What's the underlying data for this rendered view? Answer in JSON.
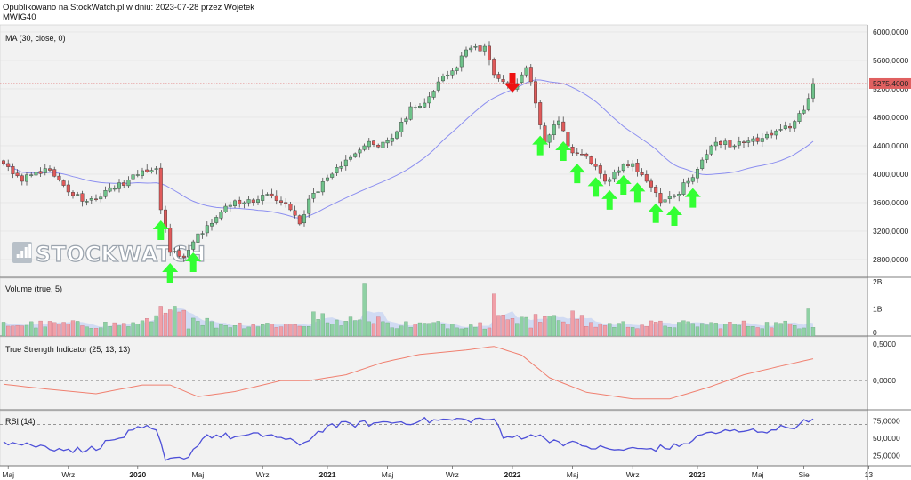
{
  "header": {
    "line1": "Opublikowano na StockWatch.pl w dniu: 2023-07-28 przez Wojetek",
    "line2": "MWIG40"
  },
  "watermark": "STOCKWATCH",
  "colors": {
    "up": "#6fc28a",
    "down": "#e05a5a",
    "ma": "#8c8ff0",
    "tsi": "#f08070",
    "rsi": "#4d4fd8",
    "vol_up": "#8fd1a4",
    "vol_down": "#f0a0a8",
    "arrow_buy": "#33ff33",
    "arrow_sell": "#ee1111",
    "last_price": "#e06060"
  },
  "x_axis": {
    "labels": [
      "Maj",
      "Wrz",
      "2020",
      "Maj",
      "Wrz",
      "2021",
      "Maj",
      "Wrz",
      "2022",
      "Maj",
      "Wrz",
      "2023",
      "Maj",
      "Sie",
      "13"
    ],
    "bold_labels": [
      "2020",
      "2021",
      "2022",
      "2023"
    ]
  },
  "panels": {
    "price": {
      "label": "MA (30, close, 0)",
      "ticks": [
        "6000,0000",
        "5600,0000",
        "5200,0000",
        "4800,0000",
        "4400,0000",
        "4000,0000",
        "3600,0000",
        "3200,0000",
        "2800,0000"
      ],
      "last_price_label": "5275,4000",
      "last_price": 5275.4
    },
    "volume": {
      "label": "Volume (true, 5)",
      "ticks": [
        "2B",
        "1B",
        "0"
      ]
    },
    "tsi": {
      "label": "True Strength Indicator (25, 13, 13)",
      "ticks": [
        "0,5000",
        "0,0000"
      ]
    },
    "rsi": {
      "label": "RSI (14)",
      "ticks": [
        "75,0000",
        "50,0000",
        "25,0000"
      ]
    }
  },
  "chart_data": {
    "type": "candlestick",
    "instrument": "MWIG40",
    "period": "weekly",
    "price_range": [
      2550,
      6100
    ],
    "close_anchors": [
      [
        0,
        4150
      ],
      [
        4,
        3900
      ],
      [
        9,
        4080
      ],
      [
        14,
        3750
      ],
      [
        18,
        3620
      ],
      [
        24,
        3800
      ],
      [
        30,
        4050
      ],
      [
        33,
        4080
      ],
      [
        34,
        3500
      ],
      [
        36,
        2900
      ],
      [
        39,
        2830
      ],
      [
        41,
        3050
      ],
      [
        44,
        3280
      ],
      [
        48,
        3550
      ],
      [
        52,
        3600
      ],
      [
        58,
        3700
      ],
      [
        62,
        3500
      ],
      [
        64,
        3300
      ],
      [
        66,
        3650
      ],
      [
        70,
        3950
      ],
      [
        74,
        4200
      ],
      [
        78,
        4400
      ],
      [
        82,
        4450
      ],
      [
        85,
        4600
      ],
      [
        88,
        4950
      ],
      [
        91,
        5000
      ],
      [
        94,
        5300
      ],
      [
        98,
        5500
      ],
      [
        100,
        5750
      ],
      [
        104,
        5800
      ],
      [
        106,
        5400
      ],
      [
        110,
        5200
      ],
      [
        113,
        5500
      ],
      [
        115,
        5000
      ],
      [
        117,
        4450
      ],
      [
        120,
        4750
      ],
      [
        123,
        4300
      ],
      [
        126,
        4250
      ],
      [
        130,
        3900
      ],
      [
        133,
        4050
      ],
      [
        136,
        4150
      ],
      [
        139,
        3900
      ],
      [
        142,
        3600
      ],
      [
        145,
        3700
      ],
      [
        148,
        3900
      ],
      [
        151,
        4200
      ],
      [
        154,
        4450
      ],
      [
        158,
        4400
      ],
      [
        162,
        4500
      ],
      [
        166,
        4550
      ],
      [
        170,
        4650
      ],
      [
        173,
        4900
      ],
      [
        175,
        5275.4
      ]
    ],
    "ma_period": 30,
    "volume_range": [
      0,
      2000000000
    ],
    "tsi_range": [
      -0.4,
      0.6
    ],
    "tsi_anchors": [
      [
        0,
        -0.05
      ],
      [
        10,
        -0.12
      ],
      [
        20,
        -0.18
      ],
      [
        30,
        -0.06
      ],
      [
        36,
        -0.06
      ],
      [
        42,
        -0.22
      ],
      [
        50,
        -0.15
      ],
      [
        60,
        0.0
      ],
      [
        66,
        0.0
      ],
      [
        74,
        0.08
      ],
      [
        82,
        0.25
      ],
      [
        90,
        0.36
      ],
      [
        100,
        0.42
      ],
      [
        106,
        0.47
      ],
      [
        112,
        0.35
      ],
      [
        118,
        0.04
      ],
      [
        126,
        -0.16
      ],
      [
        136,
        -0.25
      ],
      [
        144,
        -0.25
      ],
      [
        152,
        -0.1
      ],
      [
        160,
        0.08
      ],
      [
        168,
        0.2
      ],
      [
        175,
        0.3
      ]
    ],
    "rsi_range": [
      10,
      90
    ],
    "rsi_anchors": [
      [
        0,
        45
      ],
      [
        6,
        40
      ],
      [
        12,
        35
      ],
      [
        18,
        32
      ],
      [
        24,
        48
      ],
      [
        30,
        65
      ],
      [
        33,
        62
      ],
      [
        35,
        18
      ],
      [
        39,
        20
      ],
      [
        44,
        55
      ],
      [
        50,
        52
      ],
      [
        58,
        55
      ],
      [
        64,
        40
      ],
      [
        70,
        68
      ],
      [
        80,
        72
      ],
      [
        90,
        75
      ],
      [
        100,
        77
      ],
      [
        106,
        78
      ],
      [
        108,
        50
      ],
      [
        114,
        55
      ],
      [
        120,
        45
      ],
      [
        126,
        38
      ],
      [
        132,
        33
      ],
      [
        140,
        35
      ],
      [
        146,
        38
      ],
      [
        152,
        58
      ],
      [
        160,
        60
      ],
      [
        166,
        62
      ],
      [
        172,
        70
      ],
      [
        175,
        78
      ]
    ],
    "rsi_levels": [
      70,
      30
    ],
    "buy_signal_weeks": [
      34,
      36,
      41,
      116,
      121,
      124,
      128,
      131,
      134,
      137,
      141,
      145,
      149
    ],
    "sell_signal_weeks": [
      110
    ]
  }
}
